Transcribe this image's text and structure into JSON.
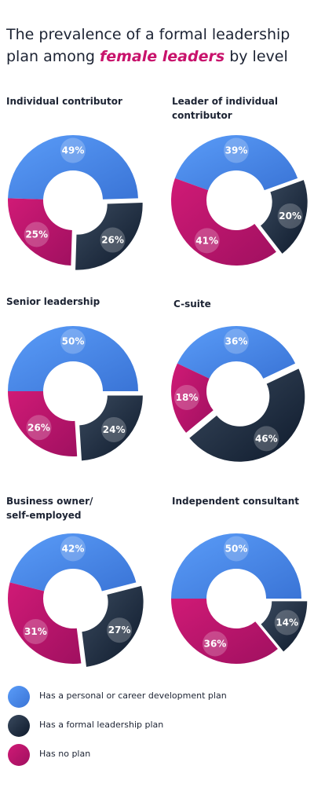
{
  "header": {
    "title_part1": "The prevalence of a formal leadership plan among ",
    "title_highlight": "female leaders",
    "title_part2": " by level"
  },
  "colors": {
    "plan": [
      "#5a9cf8",
      "#3a74d6"
    ],
    "leadership": [
      "#3a4a5e",
      "#0e1a2c"
    ],
    "none": [
      "#d01a76",
      "#a01060"
    ]
  },
  "chart_data": [
    {
      "type": "pie",
      "title": "Individual contributor",
      "categories": [
        "Has a personal or career development plan",
        "Has a formal leadership plan",
        "Has no plan"
      ],
      "values": [
        49,
        26,
        25
      ]
    },
    {
      "type": "pie",
      "title": "Leader of individual contributor",
      "categories": [
        "Has a personal or career development plan",
        "Has a formal leadership plan",
        "Has no plan"
      ],
      "values": [
        39,
        20,
        41
      ]
    },
    {
      "type": "pie",
      "title": "Senior leadership",
      "categories": [
        "Has a personal or career development plan",
        "Has a formal leadership plan",
        "Has no plan"
      ],
      "values": [
        50,
        24,
        26
      ]
    },
    {
      "type": "pie",
      "title": "C-suite",
      "categories": [
        "Has a personal or career development plan",
        "Has a formal leadership plan",
        "Has no plan"
      ],
      "values": [
        36,
        46,
        18
      ]
    },
    {
      "type": "pie",
      "title": "Business owner/ self-employed",
      "categories": [
        "Has a personal or career development plan",
        "Has a formal leadership plan",
        "Has no plan"
      ],
      "values": [
        42,
        27,
        31
      ]
    },
    {
      "type": "pie",
      "title": "Independent consultant",
      "categories": [
        "Has a personal or career development plan",
        "Has a formal leadership plan",
        "Has no plan"
      ],
      "values": [
        50,
        14,
        36
      ]
    }
  ],
  "legend": {
    "items": [
      {
        "label": "Has a personal or career development plan"
      },
      {
        "label": "Has a formal leadership plan"
      },
      {
        "label": "Has no plan"
      }
    ]
  }
}
